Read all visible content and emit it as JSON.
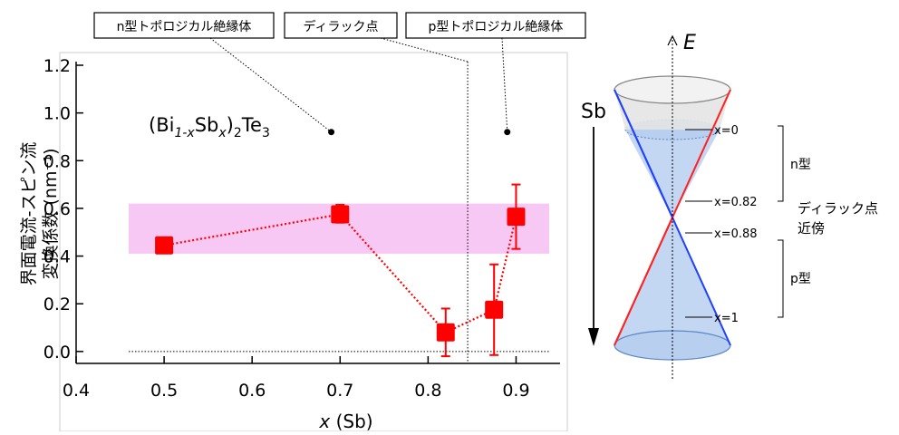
{
  "callouts": {
    "n_type": "n型トポロジカル絶縁体",
    "dirac": "ディラック点",
    "p_type": "p型トポロジカル絶縁体"
  },
  "chart_data": {
    "type": "scatter",
    "title": "",
    "ylabel_line1": "界面電流-スピン流",
    "ylabel_line2": "変換係数 (nm⁻¹)",
    "xlabel": "x (Sb)",
    "xlim": [
      0.4,
      0.95
    ],
    "ylim": [
      -0.05,
      1.2
    ],
    "xticks": [
      0.4,
      0.5,
      0.6,
      0.7,
      0.8,
      0.9
    ],
    "yticks": [
      0.0,
      0.2,
      0.4,
      0.6,
      0.8,
      1.0,
      1.2
    ],
    "xtick_labels": [
      "0.4",
      "0.5",
      "0.6",
      "0.7",
      "0.8",
      "0.9"
    ],
    "ytick_labels": [
      "0.0",
      "0.2",
      "0.4",
      "0.6",
      "0.8",
      "1.0",
      "1.2"
    ],
    "formula": "(Bi1-xSbx)2Te3",
    "band": {
      "y0": 0.41,
      "y1": 0.62,
      "color": "#f8c8f4"
    },
    "dirac_line_x": 0.845,
    "zero_line_y": 0.0,
    "callout_points": [
      {
        "x": 0.69,
        "y": 0.92
      },
      {
        "x": 0.89,
        "y": 0.92
      }
    ],
    "series": [
      {
        "color": "#ff0000",
        "points": [
          {
            "x": 0.5,
            "y": 0.445,
            "err_lo": 0.02,
            "err_hi": 0.02
          },
          {
            "x": 0.7,
            "y": 0.575,
            "err_lo": 0.035,
            "err_hi": 0.04
          },
          {
            "x": 0.82,
            "y": 0.08,
            "err_lo": 0.1,
            "err_hi": 0.1
          },
          {
            "x": 0.875,
            "y": 0.175,
            "err_lo": 0.19,
            "err_hi": 0.19
          },
          {
            "x": 0.9,
            "y": 0.565,
            "err_lo": 0.135,
            "err_hi": 0.135
          }
        ]
      }
    ]
  },
  "cone": {
    "axis_label": "E",
    "sb_label": "Sb",
    "levels": [
      "x=0",
      "x=0.82",
      "x=0.88",
      "x=1"
    ],
    "n_label": "n型",
    "p_label": "p型",
    "dirac_label_line1": "ディラック点",
    "dirac_label_line2": "近傍",
    "colors": {
      "upper_line": "#ff2020",
      "lower_line": "#2040ff",
      "fill": "#b8cff0",
      "top_fill": "#e4e4e4"
    }
  }
}
